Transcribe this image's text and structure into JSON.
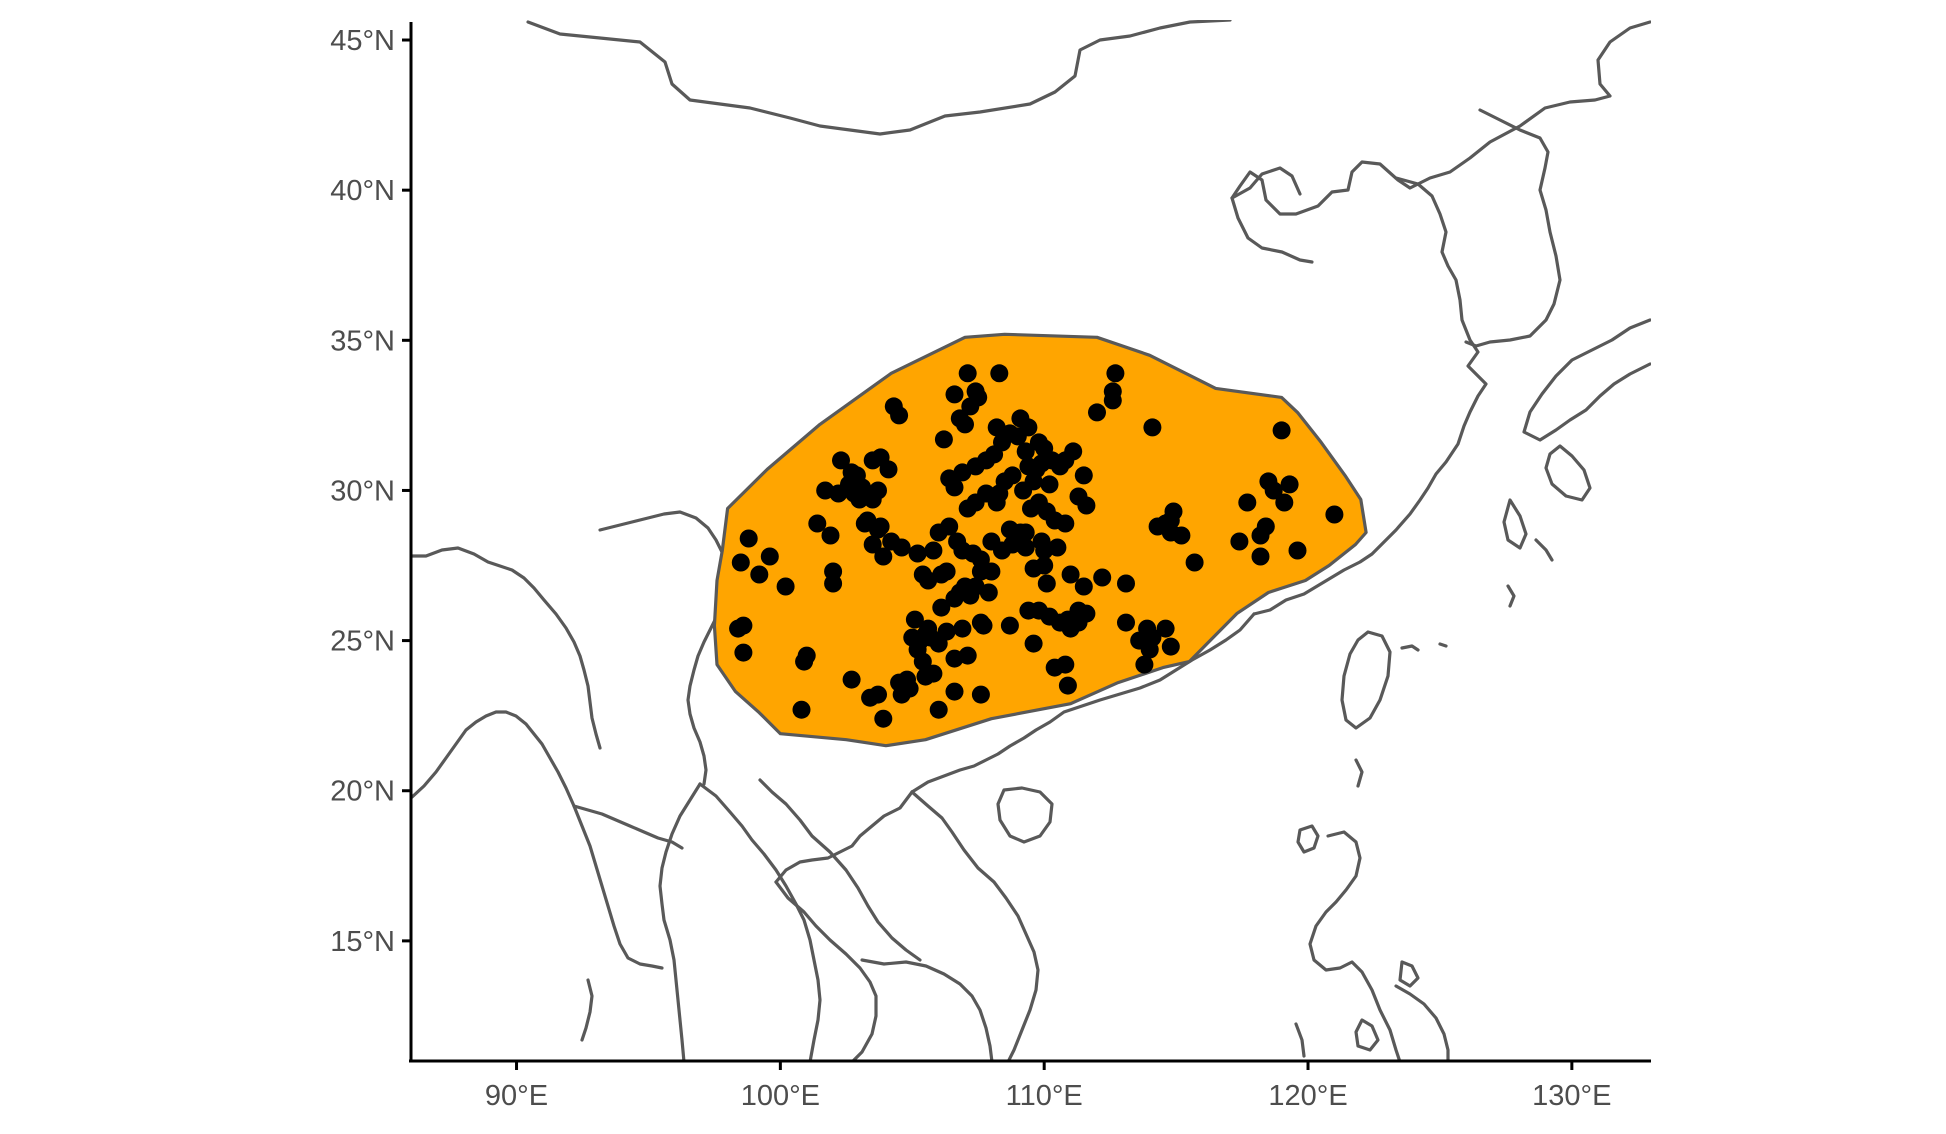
{
  "chart_data": {
    "type": "scatter",
    "map_type": "point distribution map with convex-hull range polygon",
    "region": "East and Southeast Asia",
    "xlim": [
      86,
      133
    ],
    "ylim": [
      11,
      45.6
    ],
    "x_ticks": [
      {
        "value": 90,
        "label": "90°E"
      },
      {
        "value": 100,
        "label": "100°E"
      },
      {
        "value": 110,
        "label": "110°E"
      },
      {
        "value": 120,
        "label": "120°E"
      },
      {
        "value": 130,
        "label": "130°E"
      }
    ],
    "y_ticks": [
      {
        "value": 15,
        "label": "15°N"
      },
      {
        "value": 20,
        "label": "20°N"
      },
      {
        "value": 25,
        "label": "25°N"
      },
      {
        "value": 30,
        "label": "30°N"
      },
      {
        "value": 35,
        "label": "35°N"
      },
      {
        "value": 40,
        "label": "40°N"
      },
      {
        "value": 45,
        "label": "45°N"
      }
    ],
    "grid": false,
    "colors": {
      "hull_fill": "#FFA500",
      "outline": "#595959",
      "points": "#000000",
      "axes": "#000000"
    },
    "range_polygon": [
      [
        98.0,
        29.4
      ],
      [
        99.5,
        30.7
      ],
      [
        101.5,
        32.2
      ],
      [
        104.2,
        33.9
      ],
      [
        107.0,
        35.1
      ],
      [
        108.5,
        35.2
      ],
      [
        112.0,
        35.1
      ],
      [
        114.0,
        34.5
      ],
      [
        116.5,
        33.4
      ],
      [
        119.0,
        33.1
      ],
      [
        119.6,
        32.6
      ],
      [
        120.5,
        31.6
      ],
      [
        121.4,
        30.5
      ],
      [
        122.0,
        29.7
      ],
      [
        122.2,
        28.6
      ],
      [
        121.8,
        28.2
      ],
      [
        120.8,
        27.5
      ],
      [
        119.9,
        27.0
      ],
      [
        118.5,
        26.6
      ],
      [
        117.3,
        25.9
      ],
      [
        115.5,
        24.3
      ],
      [
        114.5,
        24.1
      ],
      [
        112.8,
        23.6
      ],
      [
        111.0,
        22.9
      ],
      [
        108.0,
        22.4
      ],
      [
        105.5,
        21.7
      ],
      [
        104.0,
        21.5
      ],
      [
        102.5,
        21.7
      ],
      [
        100.0,
        21.9
      ],
      [
        99.2,
        22.6
      ],
      [
        98.3,
        23.3
      ],
      [
        97.6,
        24.2
      ],
      [
        97.5,
        25.5
      ],
      [
        97.6,
        27.0
      ],
      [
        97.8,
        28.0
      ]
    ],
    "points": [
      [
        98.6,
        25.5
      ],
      [
        98.6,
        24.6
      ],
      [
        98.4,
        25.4
      ],
      [
        98.5,
        27.6
      ],
      [
        98.8,
        28.4
      ],
      [
        99.2,
        27.2
      ],
      [
        99.6,
        27.8
      ],
      [
        100.2,
        26.8
      ],
      [
        101.0,
        24.5
      ],
      [
        100.9,
        24.3
      ],
      [
        100.8,
        22.7
      ],
      [
        101.4,
        28.9
      ],
      [
        101.7,
        30.0
      ],
      [
        101.9,
        28.5
      ],
      [
        102.0,
        26.9
      ],
      [
        102.0,
        27.3
      ],
      [
        102.2,
        29.9
      ],
      [
        102.3,
        31.0
      ],
      [
        102.6,
        30.2
      ],
      [
        102.7,
        30.6
      ],
      [
        102.9,
        30.5
      ],
      [
        103.0,
        29.7
      ],
      [
        102.8,
        29.9
      ],
      [
        103.2,
        28.9
      ],
      [
        103.1,
        30.1
      ],
      [
        103.3,
        29.0
      ],
      [
        103.5,
        31.0
      ],
      [
        103.7,
        30.0
      ],
      [
        103.8,
        31.1
      ],
      [
        104.1,
        30.7
      ],
      [
        103.5,
        28.2
      ],
      [
        103.8,
        28.8
      ],
      [
        104.2,
        28.3
      ],
      [
        103.9,
        27.8
      ],
      [
        104.6,
        28.1
      ],
      [
        103.7,
        28.7
      ],
      [
        103.5,
        29.7
      ],
      [
        102.7,
        30.3
      ],
      [
        102.7,
        23.7
      ],
      [
        103.4,
        23.1
      ],
      [
        103.7,
        23.2
      ],
      [
        103.9,
        22.4
      ],
      [
        104.5,
        23.6
      ],
      [
        104.8,
        23.7
      ],
      [
        104.6,
        23.2
      ],
      [
        104.9,
        23.4
      ],
      [
        105.5,
        23.8
      ],
      [
        105.8,
        23.9
      ],
      [
        106.0,
        22.7
      ],
      [
        106.6,
        23.3
      ],
      [
        105.4,
        24.3
      ],
      [
        105.0,
        25.1
      ],
      [
        105.3,
        25.0
      ],
      [
        105.6,
        25.4
      ],
      [
        105.7,
        25.1
      ],
      [
        106.0,
        24.9
      ],
      [
        105.2,
        24.7
      ],
      [
        105.5,
        25.2
      ],
      [
        105.1,
        25.7
      ],
      [
        106.3,
        25.3
      ],
      [
        106.6,
        24.4
      ],
      [
        107.1,
        24.5
      ],
      [
        107.6,
        23.2
      ],
      [
        106.9,
        25.4
      ],
      [
        107.7,
        25.5
      ],
      [
        107.6,
        25.6
      ],
      [
        106.1,
        26.1
      ],
      [
        106.6,
        26.4
      ],
      [
        107.0,
        26.8
      ],
      [
        107.2,
        26.5
      ],
      [
        107.4,
        26.8
      ],
      [
        107.6,
        27.3
      ],
      [
        107.9,
        26.6
      ],
      [
        108.0,
        27.3
      ],
      [
        106.1,
        27.2
      ],
      [
        105.4,
        27.2
      ],
      [
        105.6,
        27.0
      ],
      [
        105.2,
        27.9
      ],
      [
        105.8,
        28.0
      ],
      [
        106.0,
        28.6
      ],
      [
        106.4,
        28.8
      ],
      [
        106.7,
        28.3
      ],
      [
        106.9,
        28.0
      ],
      [
        107.3,
        27.9
      ],
      [
        107.6,
        27.7
      ],
      [
        107.1,
        29.4
      ],
      [
        107.4,
        29.6
      ],
      [
        107.8,
        29.9
      ],
      [
        108.2,
        29.6
      ],
      [
        108.3,
        29.9
      ],
      [
        108.0,
        28.3
      ],
      [
        108.4,
        28.0
      ],
      [
        108.8,
        28.2
      ],
      [
        109.1,
        28.6
      ],
      [
        109.3,
        28.1
      ],
      [
        108.7,
        28.7
      ],
      [
        109.3,
        28.6
      ],
      [
        109.9,
        28.3
      ],
      [
        110.0,
        27.5
      ],
      [
        109.6,
        27.4
      ],
      [
        106.4,
        30.4
      ],
      [
        106.6,
        30.1
      ],
      [
        106.9,
        30.6
      ],
      [
        107.4,
        30.8
      ],
      [
        107.8,
        31.0
      ],
      [
        108.1,
        31.2
      ],
      [
        108.4,
        31.6
      ],
      [
        109.0,
        31.8
      ],
      [
        109.3,
        31.3
      ],
      [
        109.4,
        30.8
      ],
      [
        109.7,
        30.7
      ],
      [
        109.9,
        30.9
      ],
      [
        110.0,
        31.4
      ],
      [
        110.2,
        30.2
      ],
      [
        109.6,
        30.3
      ],
      [
        109.2,
        30.0
      ],
      [
        109.5,
        29.4
      ],
      [
        109.8,
        29.6
      ],
      [
        110.1,
        29.3
      ],
      [
        110.4,
        29.0
      ],
      [
        110.8,
        28.9
      ],
      [
        110.5,
        28.1
      ],
      [
        110.0,
        28.0
      ],
      [
        108.8,
        30.5
      ],
      [
        108.5,
        30.3
      ],
      [
        108.2,
        32.1
      ],
      [
        108.7,
        31.9
      ],
      [
        109.1,
        32.4
      ],
      [
        109.4,
        32.1
      ],
      [
        109.8,
        31.6
      ],
      [
        110.3,
        31.0
      ],
      [
        110.6,
        30.8
      ],
      [
        110.8,
        31.0
      ],
      [
        111.1,
        31.3
      ],
      [
        111.3,
        29.8
      ],
      [
        111.6,
        29.5
      ],
      [
        111.5,
        30.5
      ],
      [
        106.2,
        31.7
      ],
      [
        106.8,
        32.4
      ],
      [
        107.2,
        32.8
      ],
      [
        107.0,
        32.2
      ],
      [
        107.4,
        33.3
      ],
      [
        107.5,
        33.1
      ],
      [
        106.6,
        33.2
      ],
      [
        107.1,
        33.9
      ],
      [
        108.3,
        33.9
      ],
      [
        106.8,
        26.6
      ],
      [
        106.3,
        27.3
      ],
      [
        104.3,
        32.8
      ],
      [
        104.5,
        32.5
      ],
      [
        111.0,
        25.4
      ],
      [
        110.9,
        25.7
      ],
      [
        110.6,
        25.6
      ],
      [
        110.2,
        25.8
      ],
      [
        109.8,
        26.0
      ],
      [
        111.3,
        25.6
      ],
      [
        111.6,
        25.9
      ],
      [
        111.3,
        26.0
      ],
      [
        110.4,
        24.1
      ],
      [
        110.8,
        24.2
      ],
      [
        110.9,
        23.5
      ],
      [
        109.6,
        24.9
      ],
      [
        108.7,
        25.5
      ],
      [
        109.4,
        26.0
      ],
      [
        110.1,
        26.9
      ],
      [
        111.0,
        27.2
      ],
      [
        111.5,
        26.8
      ],
      [
        112.2,
        27.1
      ],
      [
        113.1,
        26.9
      ],
      [
        112.0,
        32.6
      ],
      [
        112.6,
        33.0
      ],
      [
        112.6,
        33.3
      ],
      [
        112.7,
        33.9
      ],
      [
        113.1,
        25.6
      ],
      [
        113.9,
        25.4
      ],
      [
        114.1,
        25.1
      ],
      [
        114.0,
        24.7
      ],
      [
        113.8,
        24.2
      ],
      [
        113.6,
        25.0
      ],
      [
        114.3,
        28.8
      ],
      [
        114.6,
        28.9
      ],
      [
        114.8,
        29.0
      ],
      [
        114.8,
        28.6
      ],
      [
        114.9,
        29.3
      ],
      [
        115.2,
        28.5
      ],
      [
        115.7,
        27.6
      ],
      [
        114.6,
        25.4
      ],
      [
        114.8,
        24.8
      ],
      [
        117.4,
        28.3
      ],
      [
        117.7,
        29.6
      ],
      [
        118.2,
        28.5
      ],
      [
        118.4,
        28.8
      ],
      [
        118.2,
        27.8
      ],
      [
        118.5,
        30.3
      ],
      [
        118.7,
        30.0
      ],
      [
        119.1,
        29.6
      ],
      [
        119.3,
        30.2
      ],
      [
        119.0,
        32.0
      ],
      [
        119.6,
        28.0
      ],
      [
        121.0,
        29.2
      ],
      [
        114.1,
        32.1
      ]
    ]
  }
}
